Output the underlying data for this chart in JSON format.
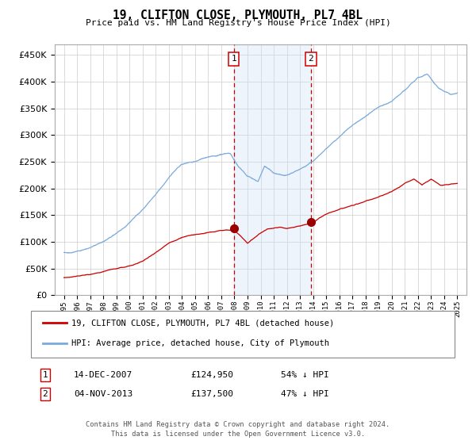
{
  "title": "19, CLIFTON CLOSE, PLYMOUTH, PL7 4BL",
  "subtitle": "Price paid vs. HM Land Registry's House Price Index (HPI)",
  "legend_line1": "19, CLIFTON CLOSE, PLYMOUTH, PL7 4BL (detached house)",
  "legend_line2": "HPI: Average price, detached house, City of Plymouth",
  "annotation1_date": "14-DEC-2007",
  "annotation1_price": "£124,950",
  "annotation1_hpi": "54% ↓ HPI",
  "annotation2_date": "04-NOV-2013",
  "annotation2_price": "£137,500",
  "annotation2_hpi": "47% ↓ HPI",
  "footer": "Contains HM Land Registry data © Crown copyright and database right 2024.\nThis data is licensed under the Open Government Licence v3.0.",
  "hpi_color": "#7aaadd",
  "price_color": "#cc0000",
  "marker_color": "#990000",
  "vline_color": "#cc0000",
  "shade_color": "#cce0f5",
  "grid_color": "#cccccc",
  "bg_color": "#ffffff",
  "ylim": [
    0,
    470000
  ],
  "ytick_vals": [
    0,
    50000,
    100000,
    150000,
    200000,
    250000,
    300000,
    350000,
    400000,
    450000
  ],
  "sale1_year": 2007.96,
  "sale2_year": 2013.84,
  "sale1_price": 124950,
  "sale2_price": 137500
}
